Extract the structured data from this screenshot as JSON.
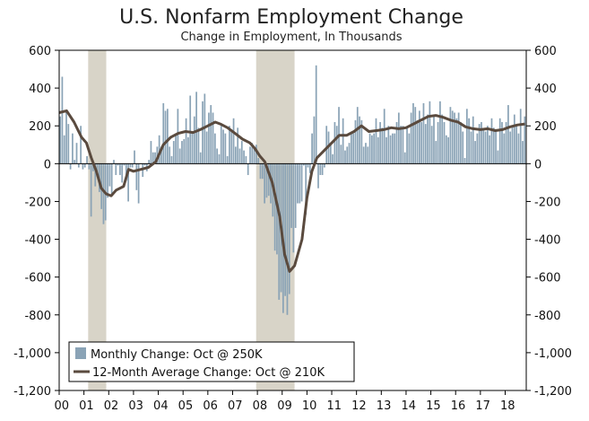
{
  "chart_data": {
    "type": "bar+line",
    "title": "U.S. Nonfarm Employment Change",
    "subtitle": "Change in Employment, In Thousands",
    "ylim": [
      -1200,
      600
    ],
    "y_ticks": [
      600,
      400,
      200,
      0,
      -200,
      -400,
      -600,
      -800,
      -1000,
      -1200
    ],
    "y_tick_labels": [
      "600",
      "400",
      "200",
      "0",
      "-200",
      "-400",
      "-600",
      "-800",
      "-1,000",
      "-1,200"
    ],
    "x_tick_labels": [
      "00",
      "01",
      "02",
      "03",
      "04",
      "05",
      "06",
      "07",
      "08",
      "09",
      "10",
      "11",
      "12",
      "13",
      "14",
      "15",
      "16",
      "17",
      "18"
    ],
    "x_range_years": [
      2000,
      2018.85
    ],
    "recessions": [
      [
        2001.17,
        2001.9
      ],
      [
        2007.95,
        2009.5
      ]
    ],
    "colors": {
      "bars": "#8aa3b6",
      "line": "#5a4a3e",
      "recession": "#d8d4c8"
    },
    "legend": {
      "placement": "bottom-left",
      "entries": [
        {
          "label": "Monthly Change: Oct @ 250K",
          "kind": "bar"
        },
        {
          "label": "12-Month Average Change: Oct @ 210K",
          "kind": "line"
        }
      ]
    },
    "line_series": {
      "name": "12-Month Average Change: Oct @ 210K",
      "points": [
        [
          2000.0,
          270
        ],
        [
          2000.3,
          280
        ],
        [
          2000.6,
          220
        ],
        [
          2000.9,
          140
        ],
        [
          2001.1,
          110
        ],
        [
          2001.3,
          30
        ],
        [
          2001.5,
          -40
        ],
        [
          2001.7,
          -130
        ],
        [
          2001.9,
          -160
        ],
        [
          2002.1,
          -170
        ],
        [
          2002.3,
          -140
        ],
        [
          2002.6,
          -120
        ],
        [
          2002.8,
          -30
        ],
        [
          2003.0,
          -40
        ],
        [
          2003.3,
          -30
        ],
        [
          2003.6,
          -20
        ],
        [
          2003.9,
          10
        ],
        [
          2004.2,
          100
        ],
        [
          2004.5,
          140
        ],
        [
          2004.8,
          160
        ],
        [
          2005.1,
          170
        ],
        [
          2005.4,
          165
        ],
        [
          2005.7,
          180
        ],
        [
          2006.0,
          200
        ],
        [
          2006.3,
          220
        ],
        [
          2006.5,
          210
        ],
        [
          2006.8,
          190
        ],
        [
          2007.1,
          160
        ],
        [
          2007.4,
          130
        ],
        [
          2007.7,
          110
        ],
        [
          2007.9,
          80
        ],
        [
          2008.1,
          40
        ],
        [
          2008.3,
          10
        ],
        [
          2008.6,
          -100
        ],
        [
          2008.9,
          -280
        ],
        [
          2009.1,
          -480
        ],
        [
          2009.3,
          -570
        ],
        [
          2009.5,
          -540
        ],
        [
          2009.8,
          -400
        ],
        [
          2010.0,
          -180
        ],
        [
          2010.2,
          -40
        ],
        [
          2010.4,
          30
        ],
        [
          2010.7,
          70
        ],
        [
          2011.0,
          110
        ],
        [
          2011.3,
          150
        ],
        [
          2011.6,
          150
        ],
        [
          2011.9,
          170
        ],
        [
          2012.2,
          200
        ],
        [
          2012.5,
          170
        ],
        [
          2012.8,
          175
        ],
        [
          2013.1,
          180
        ],
        [
          2013.4,
          190
        ],
        [
          2013.7,
          185
        ],
        [
          2014.0,
          190
        ],
        [
          2014.3,
          210
        ],
        [
          2014.6,
          230
        ],
        [
          2014.9,
          250
        ],
        [
          2015.2,
          255
        ],
        [
          2015.5,
          245
        ],
        [
          2015.8,
          230
        ],
        [
          2016.1,
          220
        ],
        [
          2016.4,
          195
        ],
        [
          2016.7,
          185
        ],
        [
          2017.0,
          180
        ],
        [
          2017.3,
          185
        ],
        [
          2017.6,
          175
        ],
        [
          2017.9,
          180
        ],
        [
          2018.2,
          195
        ],
        [
          2018.5,
          205
        ],
        [
          2018.8,
          210
        ]
      ]
    },
    "bar_series": {
      "name": "Monthly Change: Oct @ 250K",
      "values_monthly_from_2000_01": [
        250,
        460,
        150,
        280,
        210,
        -30,
        160,
        20,
        110,
        -20,
        200,
        -30,
        -20,
        40,
        -30,
        -280,
        -40,
        -120,
        -70,
        -150,
        -240,
        -320,
        -300,
        -180,
        -120,
        -160,
        20,
        -60,
        -10,
        -60,
        -100,
        -10,
        -90,
        -200,
        -20,
        -20,
        70,
        -140,
        -210,
        0,
        -70,
        -10,
        -40,
        20,
        120,
        60,
        60,
        90,
        150,
        90,
        320,
        280,
        290,
        90,
        40,
        120,
        160,
        290,
        80,
        120,
        130,
        240,
        140,
        360,
        160,
        250,
        380,
        190,
        60,
        330,
        370,
        170,
        270,
        310,
        270,
        160,
        80,
        50,
        200,
        180,
        160,
        40,
        200,
        180,
        240,
        90,
        190,
        80,
        120,
        70,
        40,
        -60,
        90,
        110,
        80,
        100,
        30,
        -80,
        -80,
        -210,
        -180,
        -170,
        -210,
        -280,
        -460,
        -480,
        -720,
        -680,
        -790,
        -700,
        -800,
        -690,
        -340,
        -470,
        -340,
        -210,
        -210,
        -200,
        -10,
        -270,
        -20,
        -50,
        160,
        250,
        520,
        -130,
        -60,
        -60,
        -20,
        200,
        170,
        110,
        50,
        220,
        200,
        300,
        100,
        240,
        70,
        90,
        110,
        170,
        160,
        230,
        300,
        250,
        230,
        90,
        110,
        90,
        160,
        150,
        160,
        240,
        140,
        220,
        190,
        290,
        140,
        200,
        150,
        160,
        160,
        220,
        270,
        200,
        200,
        60,
        190,
        160,
        270,
        320,
        300,
        230,
        280,
        220,
        320,
        210,
        260,
        330,
        200,
        260,
        120,
        220,
        330,
        260,
        220,
        150,
        140,
        300,
        280,
        270,
        240,
        270,
        220,
        170,
        30,
        290,
        240,
        170,
        250,
        120,
        160,
        210,
        220,
        180,
        170,
        200,
        150,
        240,
        190,
        180,
        70,
        240,
        220,
        160,
        220,
        310,
        170,
        200,
        260,
        210,
        160,
        290,
        120,
        250
      ]
    }
  }
}
